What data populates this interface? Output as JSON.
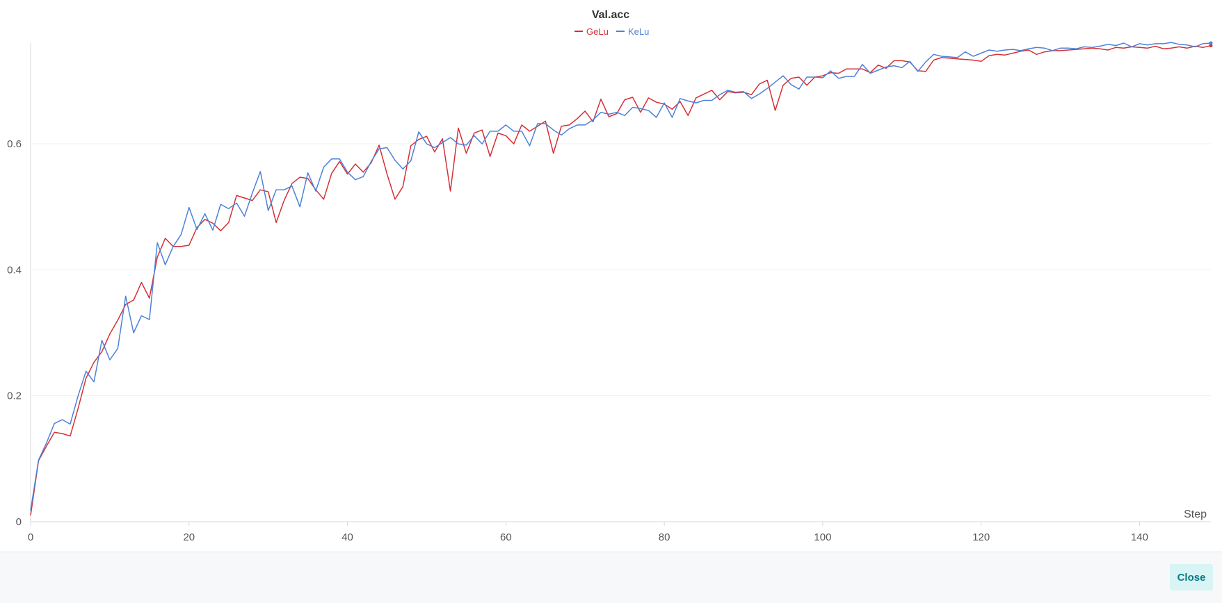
{
  "footer": {
    "close_label": "Close"
  },
  "chart_data": {
    "type": "line",
    "title": "Val.acc",
    "xlabel": "Step",
    "ylabel": "",
    "xlim": [
      0,
      149
    ],
    "ylim": [
      0,
      0.76
    ],
    "xticks": [
      0,
      20,
      40,
      60,
      80,
      100,
      120,
      140
    ],
    "yticks": [
      0,
      0.2,
      0.4,
      0.6
    ],
    "ytick_labels": [
      "0",
      "0.2",
      "0.4",
      "0.6"
    ],
    "grid": true,
    "legend_position": "top-center",
    "series": [
      {
        "name": "GeLu",
        "color": "#d62f36",
        "points": [
          [
            0,
            0.01
          ],
          [
            1,
            0.097
          ],
          [
            2,
            0.12
          ],
          [
            3,
            0.142
          ],
          [
            4,
            0.14
          ],
          [
            5,
            0.136
          ],
          [
            6,
            0.18
          ],
          [
            7,
            0.228
          ],
          [
            8,
            0.253
          ],
          [
            9,
            0.27
          ],
          [
            10,
            0.298
          ],
          [
            11,
            0.32
          ],
          [
            12,
            0.345
          ],
          [
            13,
            0.352
          ],
          [
            14,
            0.38
          ],
          [
            15,
            0.355
          ],
          [
            16,
            0.42
          ],
          [
            17,
            0.45
          ],
          [
            18,
            0.437
          ],
          [
            19,
            0.437
          ],
          [
            20,
            0.439
          ],
          [
            21,
            0.467
          ],
          [
            22,
            0.48
          ],
          [
            23,
            0.474
          ],
          [
            24,
            0.462
          ],
          [
            25,
            0.475
          ],
          [
            26,
            0.518
          ],
          [
            27,
            0.514
          ],
          [
            28,
            0.51
          ],
          [
            29,
            0.527
          ],
          [
            30,
            0.524
          ],
          [
            31,
            0.475
          ],
          [
            32,
            0.51
          ],
          [
            33,
            0.537
          ],
          [
            34,
            0.547
          ],
          [
            35,
            0.545
          ],
          [
            36,
            0.527
          ],
          [
            37,
            0.512
          ],
          [
            38,
            0.553
          ],
          [
            39,
            0.572
          ],
          [
            40,
            0.552
          ],
          [
            41,
            0.568
          ],
          [
            42,
            0.555
          ],
          [
            43,
            0.57
          ],
          [
            44,
            0.598
          ],
          [
            45,
            0.552
          ],
          [
            46,
            0.512
          ],
          [
            47,
            0.532
          ],
          [
            48,
            0.597
          ],
          [
            49,
            0.607
          ],
          [
            50,
            0.612
          ],
          [
            51,
            0.587
          ],
          [
            52,
            0.608
          ],
          [
            53,
            0.525
          ],
          [
            54,
            0.625
          ],
          [
            55,
            0.585
          ],
          [
            56,
            0.617
          ],
          [
            57,
            0.622
          ],
          [
            58,
            0.58
          ],
          [
            59,
            0.617
          ],
          [
            60,
            0.613
          ],
          [
            61,
            0.6
          ],
          [
            62,
            0.63
          ],
          [
            63,
            0.62
          ],
          [
            64,
            0.628
          ],
          [
            65,
            0.636
          ],
          [
            66,
            0.585
          ],
          [
            67,
            0.628
          ],
          [
            68,
            0.63
          ],
          [
            69,
            0.64
          ],
          [
            70,
            0.652
          ],
          [
            71,
            0.635
          ],
          [
            72,
            0.671
          ],
          [
            73,
            0.643
          ],
          [
            74,
            0.648
          ],
          [
            75,
            0.67
          ],
          [
            76,
            0.674
          ],
          [
            77,
            0.65
          ],
          [
            78,
            0.673
          ],
          [
            79,
            0.666
          ],
          [
            80,
            0.663
          ],
          [
            81,
            0.655
          ],
          [
            82,
            0.667
          ],
          [
            83,
            0.645
          ],
          [
            84,
            0.673
          ],
          [
            85,
            0.679
          ],
          [
            86,
            0.685
          ],
          [
            87,
            0.67
          ],
          [
            88,
            0.683
          ],
          [
            89,
            0.681
          ],
          [
            90,
            0.682
          ],
          [
            91,
            0.678
          ],
          [
            92,
            0.695
          ],
          [
            93,
            0.701
          ],
          [
            94,
            0.653
          ],
          [
            95,
            0.693
          ],
          [
            96,
            0.704
          ],
          [
            97,
            0.706
          ],
          [
            98,
            0.693
          ],
          [
            99,
            0.706
          ],
          [
            100,
            0.708
          ],
          [
            101,
            0.713
          ],
          [
            102,
            0.712
          ],
          [
            103,
            0.719
          ],
          [
            104,
            0.719
          ],
          [
            105,
            0.719
          ],
          [
            106,
            0.713
          ],
          [
            107,
            0.725
          ],
          [
            108,
            0.72
          ],
          [
            109,
            0.732
          ],
          [
            110,
            0.732
          ],
          [
            111,
            0.73
          ],
          [
            112,
            0.716
          ],
          [
            113,
            0.715
          ],
          [
            114,
            0.733
          ],
          [
            115,
            0.737
          ],
          [
            116,
            0.736
          ],
          [
            117,
            0.735
          ],
          [
            118,
            0.734
          ],
          [
            119,
            0.733
          ],
          [
            120,
            0.731
          ],
          [
            121,
            0.74
          ],
          [
            122,
            0.742
          ],
          [
            123,
            0.741
          ],
          [
            124,
            0.744
          ],
          [
            125,
            0.747
          ],
          [
            126,
            0.749
          ],
          [
            127,
            0.742
          ],
          [
            128,
            0.746
          ],
          [
            129,
            0.748
          ],
          [
            130,
            0.748
          ],
          [
            131,
            0.749
          ],
          [
            132,
            0.75
          ],
          [
            133,
            0.751
          ],
          [
            134,
            0.752
          ],
          [
            135,
            0.751
          ],
          [
            136,
            0.749
          ],
          [
            137,
            0.753
          ],
          [
            138,
            0.752
          ],
          [
            139,
            0.754
          ],
          [
            140,
            0.753
          ],
          [
            141,
            0.752
          ],
          [
            142,
            0.755
          ],
          [
            143,
            0.751
          ],
          [
            144,
            0.752
          ],
          [
            145,
            0.754
          ],
          [
            146,
            0.752
          ],
          [
            147,
            0.755
          ],
          [
            148,
            0.753
          ],
          [
            149,
            0.756
          ]
        ]
      },
      {
        "name": "KeLu",
        "color": "#4c82d8",
        "points": [
          [
            0,
            0.018
          ],
          [
            1,
            0.098
          ],
          [
            2,
            0.125
          ],
          [
            3,
            0.156
          ],
          [
            4,
            0.162
          ],
          [
            5,
            0.155
          ],
          [
            6,
            0.2
          ],
          [
            7,
            0.239
          ],
          [
            8,
            0.222
          ],
          [
            9,
            0.288
          ],
          [
            10,
            0.257
          ],
          [
            11,
            0.275
          ],
          [
            12,
            0.358
          ],
          [
            13,
            0.3
          ],
          [
            14,
            0.327
          ],
          [
            15,
            0.321
          ],
          [
            16,
            0.443
          ],
          [
            17,
            0.408
          ],
          [
            18,
            0.437
          ],
          [
            19,
            0.456
          ],
          [
            20,
            0.499
          ],
          [
            21,
            0.464
          ],
          [
            22,
            0.489
          ],
          [
            23,
            0.463
          ],
          [
            24,
            0.504
          ],
          [
            25,
            0.497
          ],
          [
            26,
            0.506
          ],
          [
            27,
            0.485
          ],
          [
            28,
            0.522
          ],
          [
            29,
            0.556
          ],
          [
            30,
            0.494
          ],
          [
            31,
            0.527
          ],
          [
            32,
            0.527
          ],
          [
            33,
            0.533
          ],
          [
            34,
            0.5
          ],
          [
            35,
            0.554
          ],
          [
            36,
            0.525
          ],
          [
            37,
            0.563
          ],
          [
            38,
            0.576
          ],
          [
            39,
            0.576
          ],
          [
            40,
            0.555
          ],
          [
            41,
            0.543
          ],
          [
            42,
            0.548
          ],
          [
            43,
            0.572
          ],
          [
            44,
            0.592
          ],
          [
            45,
            0.594
          ],
          [
            46,
            0.574
          ],
          [
            47,
            0.56
          ],
          [
            48,
            0.573
          ],
          [
            49,
            0.619
          ],
          [
            50,
            0.6
          ],
          [
            51,
            0.594
          ],
          [
            52,
            0.602
          ],
          [
            53,
            0.61
          ],
          [
            54,
            0.6
          ],
          [
            55,
            0.598
          ],
          [
            56,
            0.613
          ],
          [
            57,
            0.6
          ],
          [
            58,
            0.62
          ],
          [
            59,
            0.62
          ],
          [
            60,
            0.63
          ],
          [
            61,
            0.62
          ],
          [
            62,
            0.62
          ],
          [
            63,
            0.597
          ],
          [
            64,
            0.632
          ],
          [
            65,
            0.632
          ],
          [
            66,
            0.622
          ],
          [
            67,
            0.614
          ],
          [
            68,
            0.624
          ],
          [
            69,
            0.63
          ],
          [
            70,
            0.63
          ],
          [
            71,
            0.638
          ],
          [
            72,
            0.65
          ],
          [
            73,
            0.647
          ],
          [
            74,
            0.65
          ],
          [
            75,
            0.645
          ],
          [
            76,
            0.658
          ],
          [
            77,
            0.656
          ],
          [
            78,
            0.653
          ],
          [
            79,
            0.642
          ],
          [
            80,
            0.665
          ],
          [
            81,
            0.642
          ],
          [
            82,
            0.672
          ],
          [
            83,
            0.668
          ],
          [
            84,
            0.665
          ],
          [
            85,
            0.669
          ],
          [
            86,
            0.669
          ],
          [
            87,
            0.678
          ],
          [
            88,
            0.685
          ],
          [
            89,
            0.682
          ],
          [
            90,
            0.683
          ],
          [
            91,
            0.672
          ],
          [
            92,
            0.679
          ],
          [
            93,
            0.688
          ],
          [
            94,
            0.698
          ],
          [
            95,
            0.708
          ],
          [
            96,
            0.694
          ],
          [
            97,
            0.687
          ],
          [
            98,
            0.706
          ],
          [
            99,
            0.706
          ],
          [
            100,
            0.705
          ],
          [
            101,
            0.716
          ],
          [
            102,
            0.704
          ],
          [
            103,
            0.707
          ],
          [
            104,
            0.707
          ],
          [
            105,
            0.726
          ],
          [
            106,
            0.712
          ],
          [
            107,
            0.717
          ],
          [
            108,
            0.722
          ],
          [
            109,
            0.724
          ],
          [
            110,
            0.721
          ],
          [
            111,
            0.731
          ],
          [
            112,
            0.715
          ],
          [
            113,
            0.73
          ],
          [
            114,
            0.742
          ],
          [
            115,
            0.739
          ],
          [
            116,
            0.738
          ],
          [
            117,
            0.737
          ],
          [
            118,
            0.746
          ],
          [
            119,
            0.739
          ],
          [
            120,
            0.744
          ],
          [
            121,
            0.749
          ],
          [
            122,
            0.747
          ],
          [
            123,
            0.749
          ],
          [
            124,
            0.75
          ],
          [
            125,
            0.748
          ],
          [
            126,
            0.751
          ],
          [
            127,
            0.753
          ],
          [
            128,
            0.752
          ],
          [
            129,
            0.748
          ],
          [
            130,
            0.752
          ],
          [
            131,
            0.752
          ],
          [
            132,
            0.751
          ],
          [
            133,
            0.754
          ],
          [
            134,
            0.753
          ],
          [
            135,
            0.755
          ],
          [
            136,
            0.758
          ],
          [
            137,
            0.756
          ],
          [
            138,
            0.76
          ],
          [
            139,
            0.754
          ],
          [
            140,
            0.759
          ],
          [
            141,
            0.757
          ],
          [
            142,
            0.759
          ],
          [
            143,
            0.759
          ],
          [
            144,
            0.761
          ],
          [
            145,
            0.758
          ],
          [
            146,
            0.757
          ],
          [
            147,
            0.754
          ],
          [
            148,
            0.759
          ],
          [
            149,
            0.76
          ]
        ]
      }
    ]
  }
}
